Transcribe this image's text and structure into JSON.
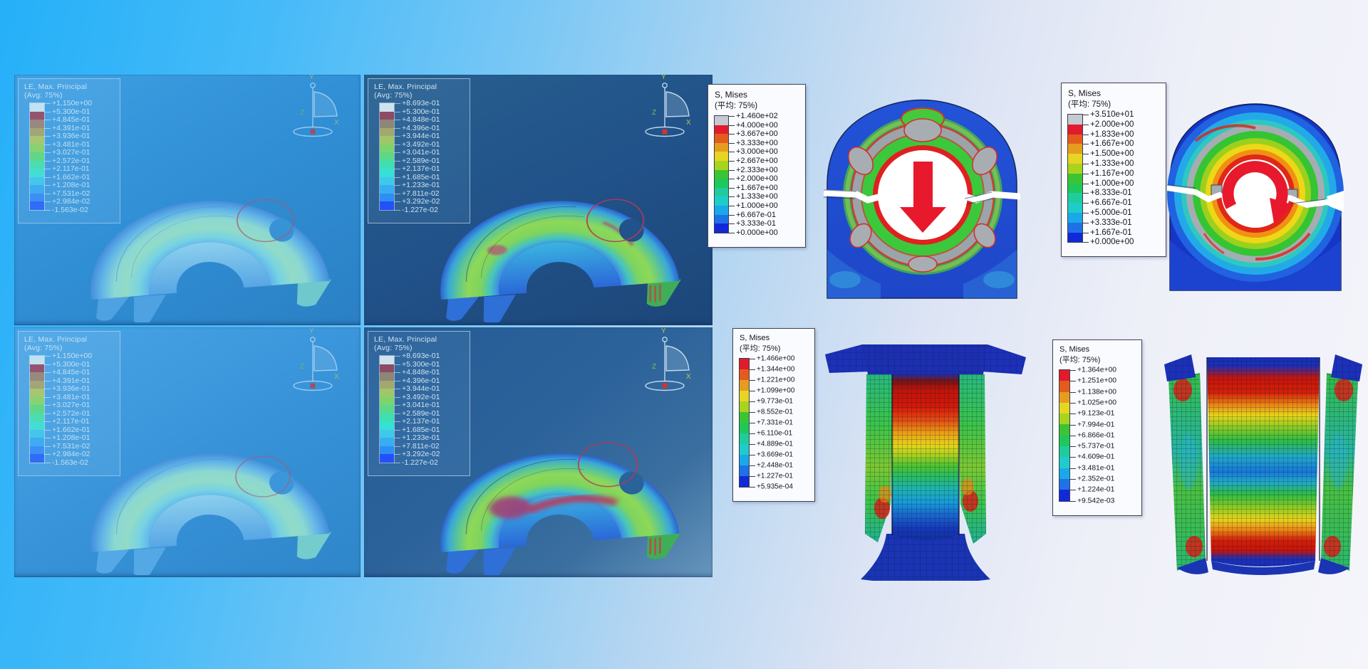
{
  "page": {
    "description": "Finite-element analysis result collage: LE max principal strain contour panels and S Mises stress contour views"
  },
  "colors": {
    "background_left": "#25b0f8",
    "background_right": "#f5f5fb",
    "panel_navy": "#215289",
    "panel_azure": "#3fa0e3",
    "load_arrow_red": "#e8192c",
    "legend_box_border": "#40454e",
    "annotation_circle_red": "#b43a55"
  },
  "strain_panels": [
    {
      "id": "top-left",
      "style": "faded",
      "legend": {
        "title": "LE, Max. Principal",
        "subtitle": "(Avg: 75%)",
        "swatches": [
          "#c2e2f0",
          "#96536f",
          "#97897e",
          "#a3a477",
          "#a6c671",
          "#88d271",
          "#60d689",
          "#4bdcb0",
          "#43ddd4",
          "#45c5ec",
          "#3fabf3",
          "#3c8ff5",
          "#306cf7"
        ],
        "values": [
          "+1.150e+00",
          "+5.300e-01",
          "+4.845e-01",
          "+4.391e-01",
          "+3.936e-01",
          "+3.481e-01",
          "+3.027e-01",
          "+2.572e-01",
          "+2.117e-01",
          "+1.662e-01",
          "+1.208e-01",
          "+7.531e-02",
          "+2.984e-02",
          "-1.563e-02"
        ]
      },
      "triad": {
        "up": "Y",
        "right": "X",
        "depth": "Z"
      }
    },
    {
      "id": "top-middle",
      "style": "vivid",
      "legend": {
        "title": "LE, Max. Principal",
        "subtitle": "(Avg: 75%)",
        "swatches": [
          "#cfe3ee",
          "#8e4a66",
          "#8e8676",
          "#a3a86f",
          "#9fc76a",
          "#7ed46b",
          "#5ad98a",
          "#3edfb0",
          "#35e0d4",
          "#3ec9ea",
          "#38aef2",
          "#2e8ef5",
          "#2450f8"
        ],
        "values": [
          "+8.693e-01",
          "+5.300e-01",
          "+4.848e-01",
          "+4.396e-01",
          "+3.944e-01",
          "+3.492e-01",
          "+3.041e-01",
          "+2.589e-01",
          "+2.137e-01",
          "+1.685e-01",
          "+1.233e-01",
          "+7.811e-02",
          "+3.292e-02",
          "-1.227e-02"
        ]
      },
      "triad": {
        "up": "Y",
        "right": "X",
        "depth": "Z"
      }
    },
    {
      "id": "bottom-left",
      "style": "faded",
      "legend": {
        "title": "LE, Max. Principal",
        "subtitle": "(Avg: 75%)",
        "swatches": [
          "#c2e2f0",
          "#96536f",
          "#97897e",
          "#a3a477",
          "#a6c671",
          "#88d271",
          "#60d689",
          "#4bdcb0",
          "#43ddd4",
          "#45c5ec",
          "#3fabf3",
          "#3c8ff5",
          "#306cf7"
        ],
        "values": [
          "+1.150e+00",
          "+5.300e-01",
          "+4.845e-01",
          "+4.391e-01",
          "+3.936e-01",
          "+3.481e-01",
          "+3.027e-01",
          "+2.572e-01",
          "+2.117e-01",
          "+1.662e-01",
          "+1.208e-01",
          "+7.531e-02",
          "+2.984e-02",
          "-1.563e-02"
        ]
      },
      "triad": {
        "up": "Y",
        "right": "X",
        "depth": "Z"
      }
    },
    {
      "id": "bottom-middle",
      "style": "vivid",
      "legend": {
        "title": "LE, Max. Principal",
        "subtitle": "(Avg: 75%)",
        "swatches": [
          "#cfe3ee",
          "#8e4a66",
          "#8e8676",
          "#a3a86f",
          "#9fc76a",
          "#7ed46b",
          "#5ad98a",
          "#3edfb0",
          "#35e0d4",
          "#3ec9ea",
          "#38aef2",
          "#2e8ef5",
          "#2450f8"
        ],
        "values": [
          "+8.693e-01",
          "+5.300e-01",
          "+4.848e-01",
          "+4.396e-01",
          "+3.944e-01",
          "+3.492e-01",
          "+3.041e-01",
          "+2.589e-01",
          "+2.137e-01",
          "+1.685e-01",
          "+1.233e-01",
          "+7.811e-02",
          "+3.292e-02",
          "-1.227e-02"
        ]
      },
      "triad": {
        "up": "Y",
        "right": "X",
        "depth": "Z"
      }
    }
  ],
  "stress_views": [
    {
      "id": "clamp-vertical-load",
      "figure": "clamp cross-section with red downward load arrow",
      "legend": {
        "title": "S, Mises",
        "subtitle": "(平均: 75%)",
        "swatches": [
          "#c4c9d2",
          "#e21a2e",
          "#e55b1e",
          "#e59d1f",
          "#e6d522",
          "#a8d41e",
          "#3dc434",
          "#1ec85b",
          "#1fcc9d",
          "#1fcccc",
          "#1aa8e8",
          "#2071e8",
          "#1129d9"
        ],
        "values": [
          "+1.460e+02",
          "+4.000e+00",
          "+3.667e+00",
          "+3.333e+00",
          "+3.000e+00",
          "+2.667e+00",
          "+2.333e+00",
          "+2.000e+00",
          "+1.667e+00",
          "+1.333e+00",
          "+1.000e+00",
          "+6.667e-01",
          "+3.333e-01",
          "+0.000e+00"
        ]
      }
    },
    {
      "id": "clamp-torsion",
      "figure": "clamp cross-section with red clockwise rotation arrow",
      "legend": {
        "title": "S, Mises",
        "subtitle": "(平均: 75%)",
        "swatches": [
          "#c4c9d2",
          "#e21a2e",
          "#e55b1e",
          "#e59d1f",
          "#e6d522",
          "#a8d41e",
          "#3dc434",
          "#1ec85b",
          "#1fcc9d",
          "#1fcccc",
          "#1aa8e8",
          "#2071e8",
          "#1129d9"
        ],
        "values": [
          "+3.510e+01",
          "+2.000e+00",
          "+1.833e+00",
          "+1.667e+00",
          "+1.500e+00",
          "+1.333e+00",
          "+1.167e+00",
          "+1.000e+00",
          "+8.333e-01",
          "+6.667e-01",
          "+5.000e-01",
          "+3.333e-01",
          "+1.667e-01",
          "+0.000e+00"
        ]
      }
    },
    {
      "id": "column-axial-1",
      "figure": "buckled column shell mesh, red band at top of web",
      "legend": {
        "title": "S, Mises",
        "subtitle": "(平均: 75%)",
        "swatches": [
          "#e21a2e",
          "#e55b1e",
          "#e59d1f",
          "#e6d522",
          "#a8d41e",
          "#3dc434",
          "#1ec85b",
          "#1fcc9d",
          "#1fcccc",
          "#1aa8e8",
          "#2071e8",
          "#1129d9"
        ],
        "values": [
          "+1.466e+00",
          "+1.344e+00",
          "+1.221e+00",
          "+1.099e+00",
          "+9.773e-01",
          "+8.552e-01",
          "+7.331e-01",
          "+6.110e-01",
          "+4.889e-01",
          "+3.669e-01",
          "+2.448e-01",
          "+1.227e-01",
          "+5.935e-04"
        ]
      }
    },
    {
      "id": "column-axial-2",
      "figure": "buckled column shell mesh, symmetric red bands top and bottom",
      "legend": {
        "title": "S, Mises",
        "subtitle": "(平均: 75%)",
        "swatches": [
          "#e21a2e",
          "#e55b1e",
          "#e59d1f",
          "#e6d522",
          "#a8d41e",
          "#3dc434",
          "#1ec85b",
          "#1fcc9d",
          "#1fcccc",
          "#1aa8e8",
          "#2071e8",
          "#1129d9"
        ],
        "values": [
          "+1.364e+00",
          "+1.251e+00",
          "+1.138e+00",
          "+1.025e+00",
          "+9.123e-01",
          "+7.994e-01",
          "+6.866e-01",
          "+5.737e-01",
          "+4.609e-01",
          "+3.481e-01",
          "+2.352e-01",
          "+1.224e-01",
          "+9.542e-03"
        ]
      }
    }
  ]
}
